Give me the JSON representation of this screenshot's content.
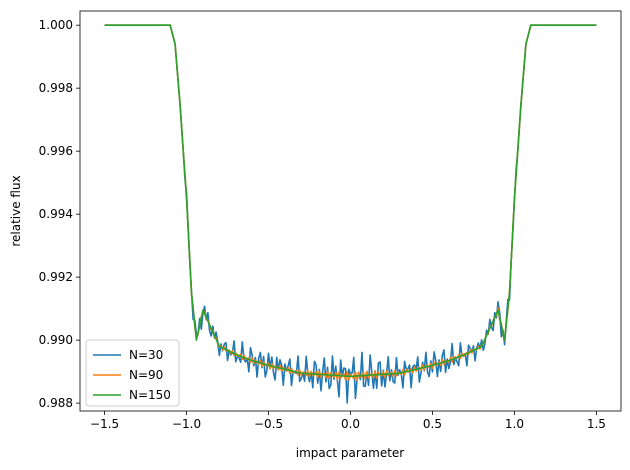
{
  "chart_data": {
    "type": "line",
    "title": "",
    "xlabel": "impact parameter",
    "ylabel": "relative flux",
    "xlim": [
      -1.65,
      1.65
    ],
    "ylim": [
      0.98775,
      1.00045
    ],
    "xticks": [
      -1.5,
      -1.0,
      -0.5,
      0.0,
      0.5,
      1.0,
      1.5
    ],
    "xtick_labels": [
      "−1.5",
      "−1.0",
      "−0.5",
      "0.0",
      "0.5",
      "1.0",
      "1.5"
    ],
    "yticks": [
      0.988,
      0.99,
      0.992,
      0.994,
      0.996,
      0.998,
      1.0
    ],
    "ytick_labels": [
      "0.988",
      "0.990",
      "0.992",
      "0.994",
      "0.996",
      "0.998",
      "1.000"
    ],
    "grid": false,
    "legend_position": "lower-left",
    "series": [
      {
        "name": "N=30",
        "color": "#1f77b4"
      },
      {
        "name": "N=90",
        "color": "#ff7f0e"
      },
      {
        "name": "N=150",
        "color": "#2ca02c"
      }
    ],
    "x": [
      -1.5,
      -1.1,
      -1.07,
      -1.04,
      -1.0,
      -0.97,
      -0.94,
      -0.9,
      -0.8,
      -0.7,
      -0.6,
      -0.5,
      -0.3,
      0.0,
      0.3,
      0.5,
      0.6,
      0.7,
      0.8,
      0.9,
      0.94,
      0.97,
      1.0,
      1.04,
      1.07,
      1.1,
      1.5
    ],
    "smooth_y": [
      1.0,
      1.0,
      0.9994,
      0.9975,
      0.9945,
      0.9915,
      0.99,
      0.99095,
      0.9898,
      0.98955,
      0.98935,
      0.9892,
      0.98895,
      0.98885,
      0.98895,
      0.9892,
      0.98935,
      0.98955,
      0.9898,
      0.99095,
      0.99,
      0.9915,
      0.9945,
      0.9975,
      0.9994,
      1.0,
      1.0
    ],
    "n30_noise_amplitude": [
      0,
      0,
      0,
      0,
      0.0002,
      0.0003,
      0.0004,
      0.0004,
      0.0003,
      0.0004,
      0.0005,
      0.0005,
      0.0005,
      0.0008,
      0.0005,
      0.0005,
      0.0005,
      0.0004,
      0.0003,
      0.0004,
      0.0004,
      0.0003,
      0.0002,
      0,
      0,
      0,
      0
    ]
  }
}
